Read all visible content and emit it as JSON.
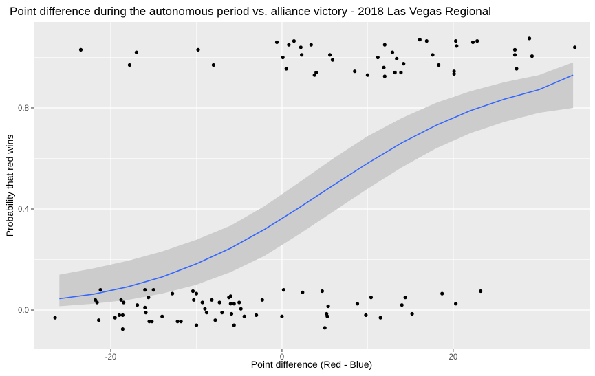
{
  "chart_data": {
    "type": "scatter",
    "title": "Point difference during the autonomous period vs. alliance victory - 2018 Las Vegas Regional",
    "xlabel": "Point difference (Red - Blue)",
    "ylabel": "Probability that red wins",
    "xlim": [
      -29,
      36
    ],
    "ylim": [
      -0.155,
      1.14
    ],
    "x_ticks": [
      -20,
      0,
      20
    ],
    "x_tick_labels": [
      "-20",
      "0",
      "20"
    ],
    "y_ticks": [
      0.0,
      0.4,
      0.8
    ],
    "y_tick_labels": [
      "0.0",
      "0.4",
      "0.8"
    ],
    "grid": true,
    "legend": "none",
    "colors": {
      "panel_background": "#ebebeb",
      "grid": "#ffffff",
      "points": "#000000",
      "fit_line": "#3366ff",
      "confidence_band": "#cccccc"
    },
    "points": [
      {
        "x": -26.5,
        "y": -0.03
      },
      {
        "x": -23.5,
        "y": 1.03
      },
      {
        "x": -21.8,
        "y": 0.04
      },
      {
        "x": -21.6,
        "y": 0.03
      },
      {
        "x": -21.4,
        "y": -0.04
      },
      {
        "x": -21.2,
        "y": 0.08
      },
      {
        "x": -19.5,
        "y": -0.03
      },
      {
        "x": -19.0,
        "y": -0.02
      },
      {
        "x": -18.8,
        "y": 0.04
      },
      {
        "x": -18.6,
        "y": -0.02
      },
      {
        "x": -18.5,
        "y": 0.03
      },
      {
        "x": -18.6,
        "y": -0.075
      },
      {
        "x": -17.8,
        "y": 0.97
      },
      {
        "x": -17.0,
        "y": 1.02
      },
      {
        "x": -16.9,
        "y": 0.02
      },
      {
        "x": -16.0,
        "y": 0.08
      },
      {
        "x": -16.0,
        "y": 0.01
      },
      {
        "x": -15.9,
        "y": -0.01
      },
      {
        "x": -15.6,
        "y": 0.05
      },
      {
        "x": -15.5,
        "y": -0.045
      },
      {
        "x": -15.2,
        "y": -0.045
      },
      {
        "x": -15.0,
        "y": 0.08
      },
      {
        "x": -14.0,
        "y": -0.025
      },
      {
        "x": -12.8,
        "y": 0.065
      },
      {
        "x": -12.2,
        "y": -0.045
      },
      {
        "x": -11.8,
        "y": -0.045
      },
      {
        "x": -10.4,
        "y": 0.075
      },
      {
        "x": -10.3,
        "y": 0.04
      },
      {
        "x": -10.0,
        "y": 0.065
      },
      {
        "x": -10.0,
        "y": -0.06
      },
      {
        "x": -9.8,
        "y": 1.03
      },
      {
        "x": -9.3,
        "y": 0.03
      },
      {
        "x": -9.0,
        "y": 0.005
      },
      {
        "x": -8.8,
        "y": -0.01
      },
      {
        "x": -8.2,
        "y": 0.04
      },
      {
        "x": -8.0,
        "y": 0.97
      },
      {
        "x": -7.8,
        "y": -0.04
      },
      {
        "x": -7.3,
        "y": 0.03
      },
      {
        "x": -7.0,
        "y": -0.01
      },
      {
        "x": -6.2,
        "y": 0.05
      },
      {
        "x": -6.0,
        "y": 0.055
      },
      {
        "x": -6.0,
        "y": 0.025
      },
      {
        "x": -5.9,
        "y": -0.015
      },
      {
        "x": -5.6,
        "y": 0.025
      },
      {
        "x": -5.6,
        "y": -0.06
      },
      {
        "x": -5.0,
        "y": 0.03
      },
      {
        "x": -4.8,
        "y": 0.005
      },
      {
        "x": -4.4,
        "y": -0.025
      },
      {
        "x": -3.0,
        "y": -0.02
      },
      {
        "x": -2.3,
        "y": 0.04
      },
      {
        "x": -0.6,
        "y": 1.06
      },
      {
        "x": 0.0,
        "y": -0.025
      },
      {
        "x": 0.1,
        "y": 1.0
      },
      {
        "x": 0.2,
        "y": 0.08
      },
      {
        "x": 0.5,
        "y": 0.955
      },
      {
        "x": 0.8,
        "y": 1.05
      },
      {
        "x": 1.4,
        "y": 1.065
      },
      {
        "x": 2.2,
        "y": 1.04
      },
      {
        "x": 2.3,
        "y": 1.01
      },
      {
        "x": 2.4,
        "y": 0.07
      },
      {
        "x": 3.4,
        "y": 1.05
      },
      {
        "x": 3.8,
        "y": 0.93
      },
      {
        "x": 4.0,
        "y": 0.94
      },
      {
        "x": 4.7,
        "y": 0.075
      },
      {
        "x": 5.0,
        "y": -0.07
      },
      {
        "x": 5.2,
        "y": -0.015
      },
      {
        "x": 5.3,
        "y": -0.025
      },
      {
        "x": 5.4,
        "y": 0.015
      },
      {
        "x": 5.6,
        "y": 1.01
      },
      {
        "x": 5.9,
        "y": 0.99
      },
      {
        "x": 8.5,
        "y": 0.945
      },
      {
        "x": 8.8,
        "y": 0.025
      },
      {
        "x": 9.8,
        "y": -0.02
      },
      {
        "x": 10.0,
        "y": 0.93
      },
      {
        "x": 10.4,
        "y": 0.05
      },
      {
        "x": 11.2,
        "y": 1.0
      },
      {
        "x": 11.5,
        "y": -0.03
      },
      {
        "x": 11.9,
        "y": 0.96
      },
      {
        "x": 12.0,
        "y": 0.925
      },
      {
        "x": 12.0,
        "y": 1.05
      },
      {
        "x": 12.9,
        "y": 1.02
      },
      {
        "x": 13.2,
        "y": 0.94
      },
      {
        "x": 13.4,
        "y": 0.995
      },
      {
        "x": 13.9,
        "y": 0.94
      },
      {
        "x": 14.0,
        "y": 0.02
      },
      {
        "x": 14.2,
        "y": 0.975
      },
      {
        "x": 14.4,
        "y": 0.05
      },
      {
        "x": 15.2,
        "y": -0.015
      },
      {
        "x": 16.1,
        "y": 1.07
      },
      {
        "x": 16.9,
        "y": 1.065
      },
      {
        "x": 17.6,
        "y": 1.01
      },
      {
        "x": 18.3,
        "y": 0.97
      },
      {
        "x": 18.7,
        "y": 0.065
      },
      {
        "x": 20.1,
        "y": 0.935
      },
      {
        "x": 20.1,
        "y": 0.945
      },
      {
        "x": 20.3,
        "y": 1.065
      },
      {
        "x": 20.3,
        "y": 0.025
      },
      {
        "x": 20.4,
        "y": 1.045
      },
      {
        "x": 22.3,
        "y": 1.06
      },
      {
        "x": 22.8,
        "y": 1.065
      },
      {
        "x": 23.2,
        "y": 0.075
      },
      {
        "x": 27.2,
        "y": 1.03
      },
      {
        "x": 27.2,
        "y": 1.01
      },
      {
        "x": 27.4,
        "y": 0.955
      },
      {
        "x": 28.9,
        "y": 1.075
      },
      {
        "x": 29.2,
        "y": 1.005
      },
      {
        "x": 34.2,
        "y": 1.04
      }
    ],
    "fit": {
      "method": "logistic",
      "x": [
        -26.0,
        -22,
        -18,
        -14,
        -10,
        -6,
        -2,
        2,
        6,
        10,
        14,
        18,
        22,
        26,
        30,
        34.0
      ],
      "y": [
        0.045,
        0.063,
        0.092,
        0.131,
        0.183,
        0.245,
        0.32,
        0.405,
        0.494,
        0.581,
        0.662,
        0.731,
        0.789,
        0.835,
        0.872,
        0.93
      ],
      "lower": [
        0.015,
        0.025,
        0.04,
        0.065,
        0.1,
        0.15,
        0.215,
        0.3,
        0.39,
        0.48,
        0.565,
        0.64,
        0.7,
        0.745,
        0.78,
        0.8
      ],
      "upper": [
        0.14,
        0.165,
        0.195,
        0.232,
        0.278,
        0.334,
        0.412,
        0.505,
        0.6,
        0.688,
        0.76,
        0.82,
        0.866,
        0.902,
        0.93,
        0.98
      ]
    }
  }
}
